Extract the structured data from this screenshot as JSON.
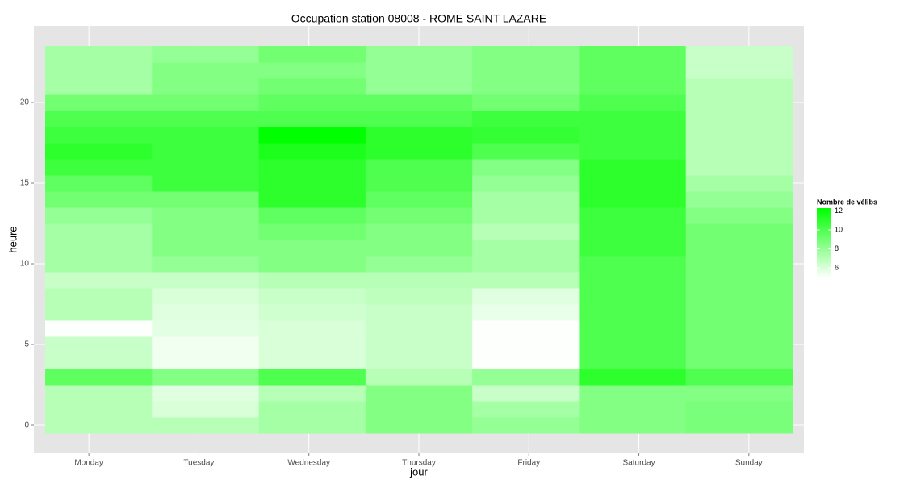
{
  "chart_data": {
    "type": "heatmap",
    "title": "Occupation station 08008 - ROME SAINT LAZARE",
    "x_label": "jour",
    "y_label": "heure",
    "categories": [
      "Monday",
      "Tuesday",
      "Wednesday",
      "Thursday",
      "Friday",
      "Saturday",
      "Sunday"
    ],
    "y": [
      0,
      1,
      2,
      3,
      4,
      5,
      6,
      7,
      8,
      9,
      10,
      11,
      12,
      13,
      14,
      15,
      16,
      17,
      18,
      19,
      20,
      21,
      22,
      23
    ],
    "values": [
      [
        7,
        7,
        7,
        9.5,
        6.5,
        6.5,
        5,
        7,
        7,
        6.5,
        7.5,
        7.5,
        7.5,
        8,
        9,
        9.5,
        10.5,
        11,
        10.5,
        10,
        9,
        7.5,
        7.5,
        7.5
      ],
      [
        7,
        6,
        5.8,
        8.5,
        5.3,
        5.3,
        5.7,
        5.8,
        6,
        6.5,
        8,
        8.5,
        8.5,
        8.5,
        9,
        10.5,
        10.5,
        10.5,
        10.5,
        10,
        9,
        8.5,
        8.5,
        8
      ],
      [
        7.5,
        7.5,
        7,
        10,
        6,
        6,
        6,
        6.3,
        6.5,
        7,
        8.5,
        8.5,
        9,
        9.5,
        11,
        11,
        11,
        11.5,
        12.3,
        10,
        9.5,
        9,
        8.5,
        9
      ],
      [
        8.5,
        8.5,
        8.5,
        7,
        6.5,
        6.5,
        6.5,
        6.5,
        6.8,
        7,
        8,
        8.5,
        8.5,
        9,
        9.5,
        10,
        10,
        11,
        11,
        10,
        9.5,
        8,
        8,
        8
      ],
      [
        8,
        7.5,
        6.5,
        8,
        5,
        5,
        5,
        5.5,
        5.8,
        7,
        7.5,
        7.5,
        7,
        7.5,
        7.5,
        8,
        8.5,
        10,
        10.8,
        10.5,
        9,
        8.5,
        8.5,
        8.5
      ],
      [
        8.5,
        8.5,
        8.5,
        11,
        10,
        10,
        10,
        10,
        10,
        10,
        10,
        10.5,
        10.5,
        10.5,
        11,
        11,
        11,
        10.5,
        10.5,
        10.5,
        10,
        9.5,
        9.5,
        9.5
      ],
      [
        8.8,
        8.8,
        8.5,
        10,
        9,
        9,
        9,
        9,
        9,
        9,
        9,
        9,
        9,
        8.5,
        8,
        7.5,
        7,
        7,
        7,
        7,
        7,
        7,
        6.5,
        6.5
      ]
    ],
    "ylim": [
      -1.7,
      24.75
    ],
    "yticks": [
      0,
      5,
      10,
      15,
      20
    ],
    "grid": true,
    "legend": {
      "title": "Nombre de vélibs",
      "position": "right",
      "low_color": "#ffffff",
      "high_color": "#00ff00",
      "clim": [
        4.9,
        12.3
      ],
      "ticks": [
        6,
        8,
        10,
        12
      ]
    }
  }
}
